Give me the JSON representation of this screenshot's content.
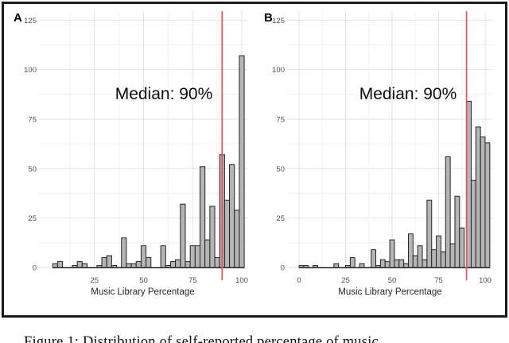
{
  "figure": {
    "caption": "Figure 1: Distribution of self-reported percentage of music",
    "border_color": "#1a1a1a",
    "background": "#ffffff"
  },
  "colors": {
    "bar_fill": "#b5b5b5",
    "bar_stroke": "#242424",
    "median_line": "#e4524d",
    "grid_major": "#e2e2e2",
    "grid_minor": "#f0f0f0",
    "baseline": "#1a1a1a"
  },
  "chart_data": [
    {
      "type": "bar",
      "panel": "A",
      "annotation": "Median: 90%",
      "median_line_x": 90,
      "xlabel": "Music Library Percentage",
      "x_ticks": [
        25,
        50,
        75,
        100
      ],
      "y_ticks": [
        0,
        25,
        50,
        75,
        100,
        125
      ],
      "xlim": [
        0,
        105
      ],
      "ylim": [
        0,
        125
      ],
      "grid": true,
      "legend": "none",
      "bin_width": 2.5,
      "bars": [
        [
          5,
          2
        ],
        [
          7.5,
          3
        ],
        [
          15,
          1
        ],
        [
          17.5,
          3
        ],
        [
          20,
          2
        ],
        [
          27.5,
          1
        ],
        [
          30,
          5
        ],
        [
          32.5,
          6
        ],
        [
          35,
          1
        ],
        [
          40,
          15
        ],
        [
          42.5,
          2
        ],
        [
          45,
          2
        ],
        [
          47.5,
          3
        ],
        [
          50,
          11
        ],
        [
          52.5,
          5
        ],
        [
          60,
          11
        ],
        [
          62.5,
          1
        ],
        [
          65,
          3
        ],
        [
          67.5,
          4
        ],
        [
          70,
          32
        ],
        [
          72.5,
          3
        ],
        [
          75,
          11
        ],
        [
          77.5,
          11
        ],
        [
          80,
          51
        ],
        [
          82.5,
          14
        ],
        [
          85,
          31
        ],
        [
          87.5,
          5
        ],
        [
          90,
          57
        ],
        [
          92.5,
          34
        ],
        [
          95,
          52
        ],
        [
          97.5,
          29
        ],
        [
          100,
          107
        ]
      ]
    },
    {
      "type": "bar",
      "panel": "B",
      "annotation": "Median: 90%",
      "median_line_x": 90,
      "xlabel": "Music Library Percentage",
      "x_ticks": [
        0,
        25,
        50,
        75,
        100
      ],
      "y_ticks": [
        0,
        25,
        50,
        75,
        100,
        125
      ],
      "xlim": [
        0,
        105
      ],
      "ylim": [
        0,
        125
      ],
      "grid": true,
      "legend": "none",
      "bin_width": 2.5,
      "bars": [
        [
          1.25,
          1
        ],
        [
          3.75,
          1
        ],
        [
          8.75,
          1
        ],
        [
          20,
          2
        ],
        [
          26.25,
          1
        ],
        [
          28.75,
          5
        ],
        [
          33.75,
          2
        ],
        [
          40,
          9
        ],
        [
          42.5,
          1
        ],
        [
          45,
          4
        ],
        [
          47.5,
          3
        ],
        [
          50,
          14
        ],
        [
          52.5,
          4
        ],
        [
          55,
          4
        ],
        [
          57.5,
          2
        ],
        [
          60,
          17
        ],
        [
          62.5,
          6
        ],
        [
          65,
          11
        ],
        [
          67.5,
          4
        ],
        [
          70,
          34
        ],
        [
          72.5,
          9
        ],
        [
          75,
          16
        ],
        [
          77.5,
          8
        ],
        [
          80,
          56
        ],
        [
          82.5,
          12
        ],
        [
          85,
          36
        ],
        [
          87.5,
          20
        ],
        [
          91.25,
          84
        ],
        [
          93.75,
          44
        ],
        [
          96.25,
          71
        ],
        [
          98.75,
          66
        ],
        [
          101.25,
          63
        ]
      ]
    }
  ]
}
